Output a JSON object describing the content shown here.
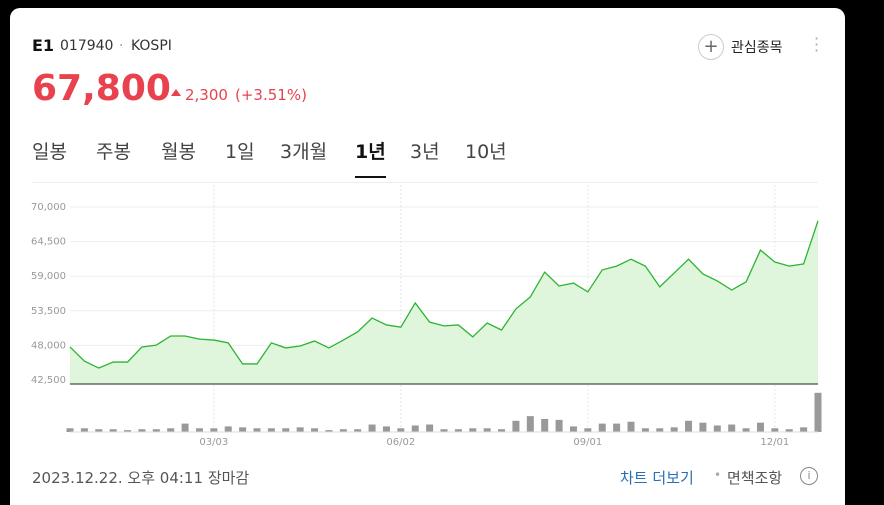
{
  "header": {
    "name": "E1",
    "code": "017940",
    "separator": "·",
    "market": "KOSPI",
    "watch_label": "관심종목"
  },
  "price": {
    "value": "67,800",
    "change": "2,300",
    "change_pct": "(+3.51%)"
  },
  "tabs": [
    "일봉",
    "주봉",
    "월봉",
    "1일",
    "3개월",
    "1년",
    "3년",
    "10년"
  ],
  "selected_tab": 5,
  "chart_data": {
    "type": "line",
    "categories": [
      null,
      null,
      null,
      null,
      null,
      null,
      null,
      null,
      null,
      null,
      "03/03",
      null,
      null,
      null,
      null,
      null,
      null,
      null,
      null,
      null,
      null,
      null,
      null,
      "06/02",
      null,
      null,
      null,
      null,
      null,
      null,
      null,
      null,
      null,
      null,
      null,
      null,
      "09/01",
      null,
      null,
      null,
      null,
      null,
      null,
      null,
      null,
      null,
      null,
      null,
      null,
      "12/01",
      null,
      null,
      null
    ],
    "series": [
      {
        "color": "#2db431",
        "fill": "#dff5dc",
        "values": [
          47750,
          45500,
          44400,
          45350,
          45350,
          47750,
          48050,
          49500,
          49500,
          49000,
          48850,
          48400,
          45050,
          45050,
          48400,
          47600,
          47900,
          48700,
          47600,
          48850,
          50150,
          52350,
          51250,
          50900,
          54750,
          51700,
          51100,
          51250,
          49350,
          51550,
          50450,
          53800,
          55700,
          59650,
          57450,
          57900,
          56500,
          60000,
          60600,
          61700,
          60600,
          57300,
          59500,
          61700,
          59350,
          58250,
          56800,
          58100,
          63150,
          61250,
          60600,
          60950,
          67800
        ]
      },
      {
        "type": "bar",
        "axis": "y2",
        "color": "#999999",
        "values": [
          4,
          4,
          3,
          3,
          2,
          3,
          3,
          4,
          9,
          4,
          4,
          6,
          5,
          4,
          4,
          4,
          5,
          4,
          2,
          3,
          3,
          8,
          6,
          4,
          7,
          8,
          3,
          3,
          4,
          4,
          3,
          12,
          17,
          14,
          13,
          6,
          4,
          9,
          9,
          11,
          4,
          4,
          5,
          12,
          10,
          7,
          8,
          4,
          10,
          4,
          3,
          5,
          42
        ]
      }
    ],
    "ylim": [
      42500,
      70000
    ],
    "yticks": [
      {
        "value": 42500,
        "label": "42,500"
      },
      {
        "value": 48000,
        "label": "48,000"
      },
      {
        "value": 53500,
        "label": "53,500"
      },
      {
        "value": 59000,
        "label": "59,000"
      },
      {
        "value": 64500,
        "label": "64,500"
      },
      {
        "value": 70000,
        "label": "70,000"
      }
    ],
    "y2lim": [
      0,
      45
    ],
    "grid": true
  },
  "footer": {
    "timestamp": "2023.12.22. 오후 04:11",
    "status": "장마감",
    "more_link": "차트 더보기",
    "dot": "•",
    "disclaimer": "면책조항"
  }
}
